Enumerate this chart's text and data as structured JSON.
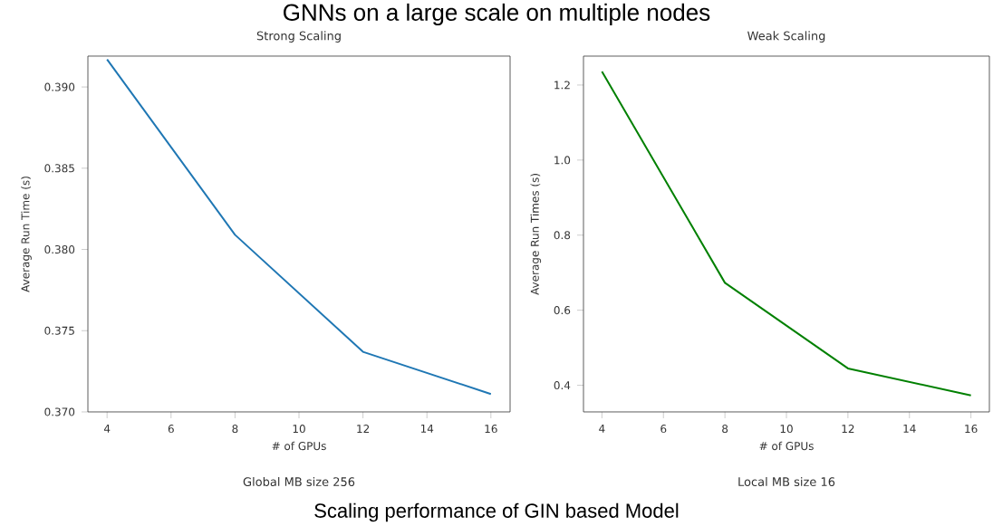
{
  "chart_data": [
    {
      "type": "line",
      "title": "Strong Scaling",
      "xlabel": "# of GPUs",
      "ylabel": "Average Run Time (s)",
      "x": [
        4,
        8,
        12,
        16
      ],
      "values": [
        0.3917,
        0.3809,
        0.3737,
        0.3711
      ],
      "color": "#1f77b4",
      "xlim": [
        3.4,
        16.6
      ],
      "ylim": [
        0.37,
        0.3919
      ],
      "xticks": [
        4,
        6,
        8,
        10,
        12,
        14,
        16
      ],
      "yticks": [
        {
          "value": 0.37,
          "label": "0.370"
        },
        0.375,
        {
          "value": 0.38,
          "label": "0.380"
        },
        0.385,
        {
          "value": 0.39,
          "label": "0.390"
        }
      ],
      "annotations": [
        "Global MB size 256",
        "Scaling performance of GIN based Model",
        "GNNs on a large scale on multiple nodes"
      ]
    },
    {
      "type": "line",
      "title": "Weak Scaling",
      "xlabel": "# of GPUs",
      "ylabel": "Average Run Times (s)",
      "x": [
        4,
        8,
        12,
        16
      ],
      "values": [
        1.236,
        0.673,
        0.445,
        0.373
      ],
      "color": "#008000",
      "xlim": [
        3.4,
        16.6
      ],
      "ylim": [
        0.329,
        1.277
      ],
      "xticks": [
        4,
        6,
        8,
        10,
        12,
        14,
        16
      ],
      "yticks": [
        0.4,
        0.6,
        0.8,
        {
          "value": 1.0,
          "label": "1.0"
        },
        1.2
      ],
      "annotations": [
        "Local MB size 16"
      ]
    }
  ]
}
